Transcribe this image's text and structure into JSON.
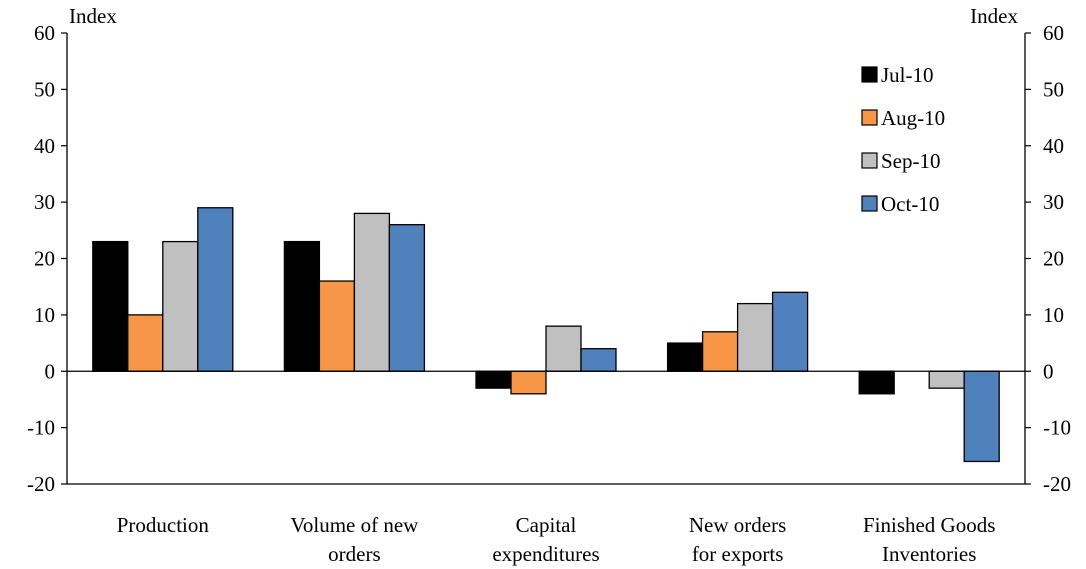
{
  "chart_data": {
    "type": "bar",
    "y_unit_left": "Index",
    "y_unit_right": "Index",
    "categories": [
      [
        "Production"
      ],
      [
        "Volume of new",
        "orders"
      ],
      [
        "Capital",
        "expenditures"
      ],
      [
        "New orders",
        "for exports"
      ],
      [
        "Finished Goods",
        "Inventories"
      ]
    ],
    "series": [
      {
        "name": "Jul-10",
        "color": "#000000",
        "values": [
          23,
          23,
          -3,
          5,
          -4
        ]
      },
      {
        "name": "Aug-10",
        "color": "#F79646",
        "values": [
          10,
          16,
          -4,
          7,
          null
        ]
      },
      {
        "name": "Sep-10",
        "color": "#C0C0C0",
        "values": [
          23,
          28,
          8,
          12,
          -3
        ]
      },
      {
        "name": "Oct-10",
        "color": "#4F81BD",
        "values": [
          29,
          26,
          4,
          14,
          -16
        ]
      }
    ],
    "ylim": [
      -20,
      60
    ],
    "yticks": [
      -20,
      -10,
      0,
      10,
      20,
      30,
      40,
      50,
      60
    ],
    "legend_position": "top-right",
    "grid": false
  }
}
